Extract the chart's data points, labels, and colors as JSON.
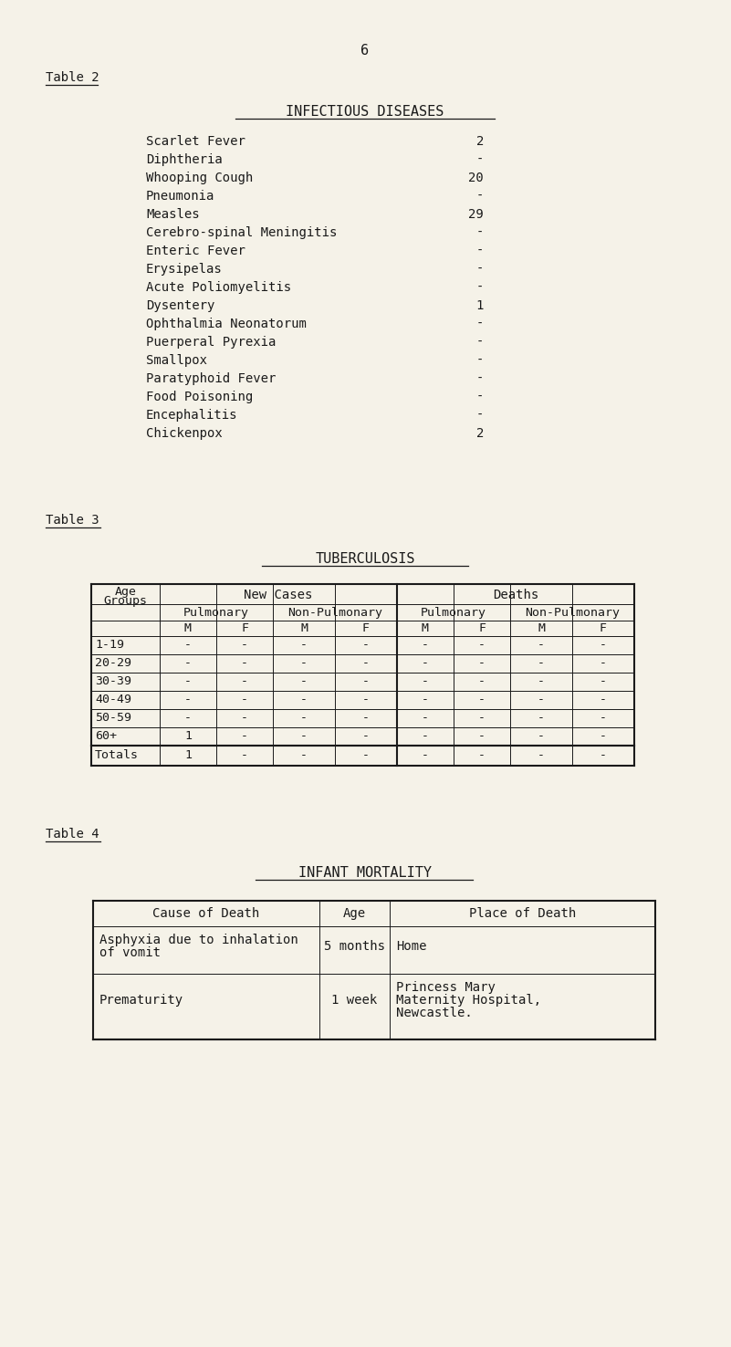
{
  "bg_color": "#f5f2e8",
  "text_color": "#1a1a1a",
  "page_number": "6",
  "table2_label": "Table 2",
  "table2_title": "INFECTIOUS DISEASES",
  "table2_diseases": [
    [
      "Scarlet Fever",
      "2"
    ],
    [
      "Diphtheria",
      "-"
    ],
    [
      "Whooping Cough",
      "20"
    ],
    [
      "Pneumonia",
      "-"
    ],
    [
      "Measles",
      "29"
    ],
    [
      "Cerebro-spinal Meningitis",
      "-"
    ],
    [
      "Enteric Fever",
      "-"
    ],
    [
      "Erysipelas",
      "-"
    ],
    [
      "Acute Poliomyelitis",
      "-"
    ],
    [
      "Dysentery",
      "1"
    ],
    [
      "Ophthalmia Neonatorum",
      "-"
    ],
    [
      "Puerperal Pyrexia",
      "-"
    ],
    [
      "Smallpox",
      "-"
    ],
    [
      "Paratyphoid Fever",
      "-"
    ],
    [
      "Food Poisoning",
      "-"
    ],
    [
      "Encephalitis",
      "-"
    ],
    [
      "Chickenpox",
      "2"
    ]
  ],
  "table3_label": "Table 3",
  "table3_title": "TUBERCULOSIS",
  "table3_age_groups": [
    "1-19",
    "20-29",
    "30-39",
    "40-49",
    "50-59",
    "60+"
  ],
  "table3_row_data": [
    [
      "-",
      "-",
      "-",
      "-",
      "-",
      "-",
      "-",
      "-"
    ],
    [
      "-",
      "-",
      "-",
      "-",
      "-",
      "-",
      "-",
      "-"
    ],
    [
      "-",
      "-",
      "-",
      "-",
      "-",
      "-",
      "-",
      "-"
    ],
    [
      "-",
      "-",
      "-",
      "-",
      "-",
      "-",
      "-",
      "-"
    ],
    [
      "-",
      "-",
      "-",
      "-",
      "-",
      "-",
      "-",
      "-"
    ],
    [
      "1",
      "-",
      "-",
      "-",
      "-",
      "-",
      "-",
      "-"
    ]
  ],
  "table3_totals_vals": [
    "1",
    "-",
    "-",
    "-",
    "-",
    "-",
    "-",
    "-"
  ],
  "table4_label": "Table 4",
  "table4_title": "INFANT MORTALITY",
  "table4_headers": [
    "Cause of Death",
    "Age",
    "Place of Death"
  ],
  "table4_row1_cause_line1": "Asphyxia due to inhalation",
  "table4_row1_cause_line2": "of vomit",
  "table4_row1_age": "5 months",
  "table4_row1_place": "Home",
  "table4_row2_cause": "Prematurity",
  "table4_row2_age": "1 week",
  "table4_row2_place_line1": "Princess Mary",
  "table4_row2_place_line2": "Maternity Hospital,",
  "table4_row2_place_line3": "Newcastle."
}
